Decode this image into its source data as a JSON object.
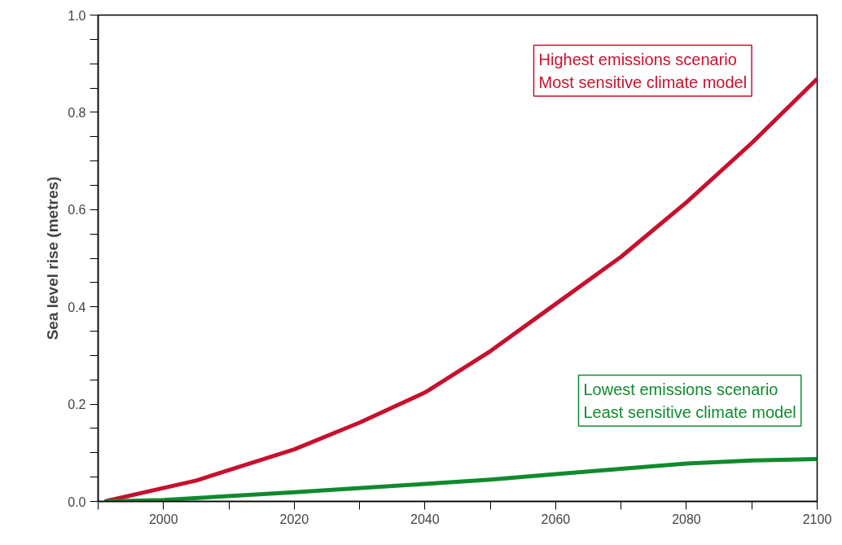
{
  "chart_data": {
    "type": "line",
    "ylabel": "Sea level rise (metres)",
    "xlim": [
      1990,
      2100
    ],
    "ylim": [
      0,
      1.0
    ],
    "xticks": [
      2000,
      2020,
      2040,
      2060,
      2080,
      2100
    ],
    "yticks": [
      {
        "value": 0,
        "label": "0.0"
      },
      {
        "value": 0.2,
        "label": "0.2"
      },
      {
        "value": 0.4,
        "label": "0.4"
      },
      {
        "value": 0.6,
        "label": "0.6"
      },
      {
        "value": 0.8,
        "label": "0.8"
      },
      {
        "value": 1.0,
        "label": "1.0"
      }
    ],
    "grid": false,
    "marker": "none",
    "line_style": "solid",
    "series": [
      {
        "name": "Highest emissions scenario\nMost sensitive climate model",
        "color": "#c8102e",
        "x": [
          1991,
          2005,
          2020,
          2030,
          2040,
          2050,
          2060,
          2070,
          2080,
          2090,
          2100
        ],
        "values": [
          0,
          0.043,
          0.107,
          0.162,
          0.224,
          0.309,
          0.406,
          0.503,
          0.615,
          0.737,
          0.869
        ]
      },
      {
        "name": "Lowest emissions scenario\nLeast sensitive climate model",
        "color": "#108a2e",
        "x": [
          1991,
          2000,
          2020,
          2040,
          2050,
          2060,
          2070,
          2080,
          2090,
          2100
        ],
        "values": [
          0,
          0.003,
          0.019,
          0.036,
          0.045,
          0.056,
          0.067,
          0.078,
          0.084,
          0.087
        ]
      }
    ]
  }
}
